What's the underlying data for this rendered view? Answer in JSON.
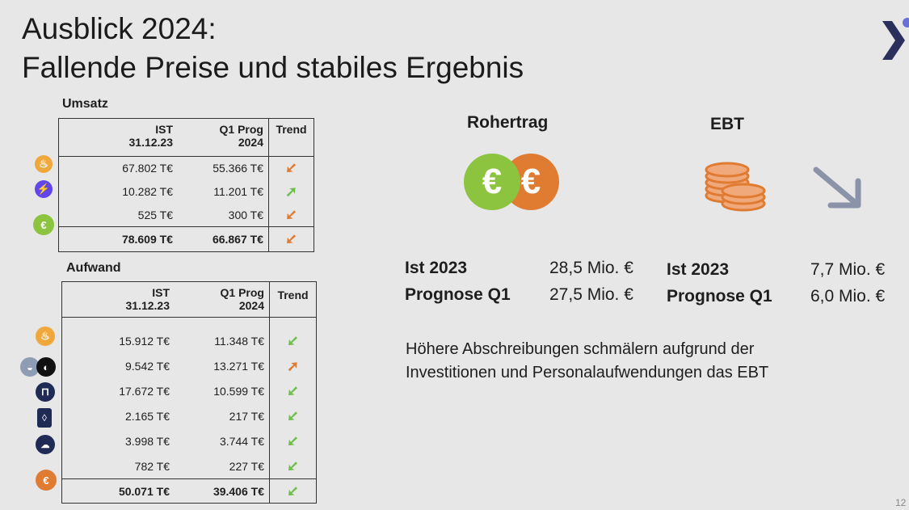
{
  "title": {
    "line1": "Ausblick 2024:",
    "line2": "Fallende Preise und stabiles Ergebnis"
  },
  "umsatz": {
    "label": "Umsatz",
    "headers": {
      "ist_l1": "IST",
      "ist_l2": "31.12.23",
      "prog_l1": "Q1 Prog",
      "prog_l2": "2024",
      "trend": "Trend"
    },
    "rows": [
      {
        "icon": "flame-icon",
        "ist": "67.802 T€",
        "prog": "55.366 T€",
        "trend": "down"
      },
      {
        "icon": "lightning-icon",
        "ist": "10.282 T€",
        "prog": "11.201 T€",
        "trend": "up"
      },
      {
        "icon": "euro-icon",
        "ist": "525 T€",
        "prog": "300 T€",
        "trend": "down"
      }
    ],
    "total": {
      "ist": "78.609 T€",
      "prog": "66.867 T€",
      "trend": "down"
    }
  },
  "aufwand": {
    "label": "Aufwand",
    "headers": {
      "ist_l1": "IST",
      "ist_l2": "31.12.23",
      "prog_l1": "Q1 Prog",
      "prog_l2": "2024",
      "trend": "Trend"
    },
    "rows": [
      {
        "icon": "flame-icon",
        "ist": "15.912 T€",
        "prog": "11.348 T€",
        "trend": "down"
      },
      {
        "icon": "piggy-bank-icon",
        "ist": "9.542 T€",
        "prog": "13.271 T€",
        "trend": "up"
      },
      {
        "icon": "pipe-icon",
        "ist": "17.672 T€",
        "prog": "10.599 T€",
        "trend": "down"
      },
      {
        "icon": "drop-icon",
        "ist": "2.165 T€",
        "prog": "217 T€",
        "trend": "down"
      },
      {
        "icon": "cloud-icon",
        "ist": "3.998 T€",
        "prog": "3.744 T€",
        "trend": "down"
      },
      {
        "icon": "none",
        "ist": "782 T€",
        "prog": "227 T€",
        "trend": "down"
      }
    ],
    "total": {
      "icon": "euro-icon",
      "ist": "50.071 T€",
      "prog": "39.406 T€",
      "trend": "down"
    }
  },
  "rohertrag": {
    "label": "Rohertrag",
    "ist_label": "Ist 2023",
    "ist_value": "28,5 Mio. €",
    "prog_label": "Prognose Q1",
    "prog_value": "27,5 Mio. €"
  },
  "ebt": {
    "label": "EBT",
    "ist_label": "Ist 2023",
    "ist_value": "7,7 Mio. €",
    "prog_label": "Prognose Q1",
    "prog_value": "6,0 Mio. €"
  },
  "note": {
    "line1": "Höhere Abschreibungen schmälern aufgrund der",
    "line2": "Investitionen und Personalaufwendungen das EBT"
  },
  "page_number": "12",
  "colors": {
    "green": "#8cc43f",
    "orange": "#e07b32",
    "navy": "#1f2a55",
    "background": "#e7e7e7"
  }
}
